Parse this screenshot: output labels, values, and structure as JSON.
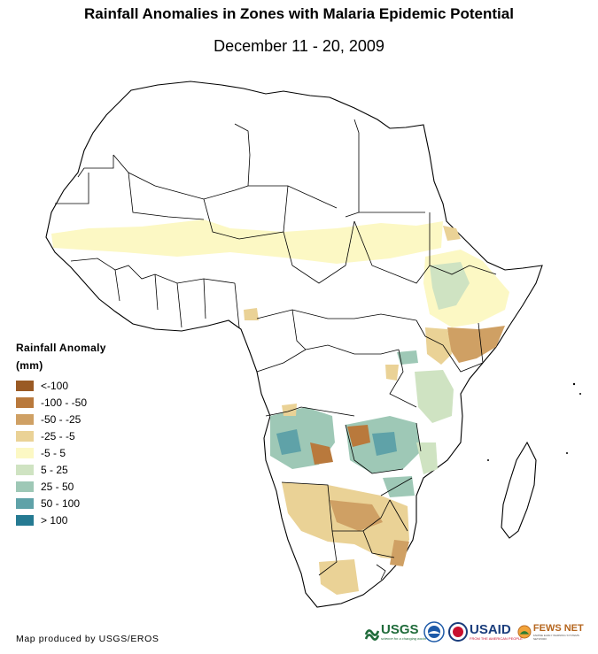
{
  "title": "Rainfall Anomalies in Zones with Malaria Epidemic Potential",
  "subtitle": "December 11 - 20, 2009",
  "legend": {
    "title": "Rainfall Anomaly",
    "unit": "(mm)",
    "items": [
      {
        "label": "<-100",
        "color": "#9a5a24"
      },
      {
        "label": "-100 - -50",
        "color": "#b9793c"
      },
      {
        "label": "-50 - -25",
        "color": "#cfa064"
      },
      {
        "label": "-25 - -5",
        "color": "#ead296"
      },
      {
        "label": "-5 - 5",
        "color": "#fcf8c4"
      },
      {
        "label": "5 - 25",
        "color": "#cfe3c2"
      },
      {
        "label": "25 - 50",
        "color": "#9ec8b6"
      },
      {
        "label": "50 - 100",
        "color": "#5fa2a8"
      },
      {
        "label": "> 100",
        "color": "#257a92"
      }
    ]
  },
  "credit": "Map produced by USGS/EROS",
  "logos": {
    "usgs": "USGS",
    "usgs_tagline": "science for a changing world",
    "usaid": "USAID",
    "usaid_tagline": "FROM THE AMERICAN PEOPLE",
    "fewsnet": "FEWS NET",
    "fewsnet_tagline": "FAMINE EARLY WARNING SYSTEMS NETWORK"
  }
}
